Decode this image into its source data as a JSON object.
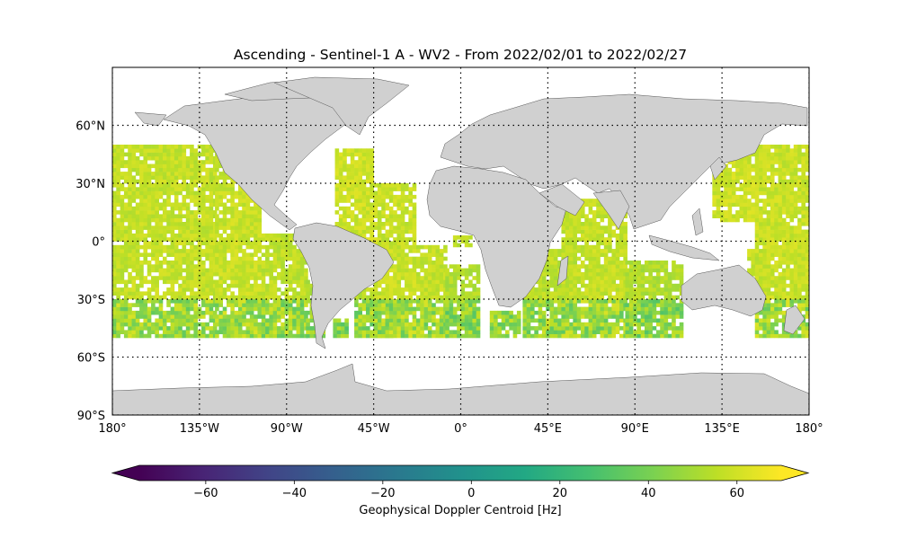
{
  "chart_data": {
    "type": "heatmap",
    "title": "Ascending - Sentinel-1 A - WV2 - From 2022/02/01 to 2022/02/27",
    "projection": "PlateCarree",
    "xlim": [
      -180,
      180
    ],
    "ylim": [
      -90,
      90
    ],
    "x_ticks": [
      -180,
      -135,
      -90,
      -45,
      0,
      45,
      90,
      135,
      180
    ],
    "x_tick_labels": [
      "180°",
      "135°W",
      "90°W",
      "45°W",
      "0°",
      "45°E",
      "90°E",
      "135°E",
      "180°"
    ],
    "y_ticks": [
      -90,
      -60,
      -30,
      0,
      30,
      60
    ],
    "y_tick_labels": [
      "90°S",
      "60°S",
      "30°S",
      "0°",
      "30°N",
      "60°N"
    ],
    "gridlines": "dotted",
    "land_color": "#d0d0d0",
    "colorbar": {
      "label": "Geophysical Doppler Centroid [Hz]",
      "colormap": "viridis",
      "range": [
        -75,
        70
      ],
      "ticks": [
        -60,
        -40,
        -20,
        0,
        20,
        40,
        60
      ],
      "tick_labels": [
        "−60",
        "−40",
        "−20",
        "0",
        "20",
        "40",
        "60"
      ],
      "extend": "both"
    },
    "data_coverage": {
      "lat_range": [
        -50,
        50
      ],
      "typical_value_range": [
        35,
        70
      ],
      "swaths": [
        {
          "lon": [
            -180,
            -127
          ],
          "lat": [
            -50,
            50
          ],
          "value": 62
        },
        {
          "lon": [
            -127,
            -103
          ],
          "lat": [
            -50,
            48
          ],
          "value": 63
        },
        {
          "lon": [
            -103,
            -80
          ],
          "lat": [
            -50,
            3
          ],
          "value": 61
        },
        {
          "lon": [
            -80,
            -70
          ],
          "lat": [
            -50,
            -20
          ],
          "value": 58
        },
        {
          "lon": [
            -66,
            -58
          ],
          "lat": [
            -50,
            -40
          ],
          "value": 56
        },
        {
          "lon": [
            -65,
            -45
          ],
          "lat": [
            -10,
            47
          ],
          "value": 64
        },
        {
          "lon": [
            -55,
            -35
          ],
          "lat": [
            -50,
            -25
          ],
          "value": 60
        },
        {
          "lon": [
            -45,
            -23
          ],
          "lat": [
            -50,
            30
          ],
          "value": 63
        },
        {
          "lon": [
            -23,
            -8
          ],
          "lat": [
            -50,
            -2
          ],
          "value": 62
        },
        {
          "lon": [
            -8,
            10
          ],
          "lat": [
            -50,
            -12
          ],
          "value": 58
        },
        {
          "lon": [
            -4,
            6
          ],
          "lat": [
            -3,
            2
          ],
          "value": 60
        },
        {
          "lon": [
            15,
            30
          ],
          "lat": [
            -50,
            -37
          ],
          "value": 60
        },
        {
          "lon": [
            32,
            60
          ],
          "lat": [
            -50,
            -5
          ],
          "value": 60
        },
        {
          "lon": [
            52,
            85
          ],
          "lat": [
            -50,
            22
          ],
          "value": 62
        },
        {
          "lon": [
            85,
            115
          ],
          "lat": [
            -50,
            -10
          ],
          "value": 58
        },
        {
          "lon": [
            130,
            152
          ],
          "lat": [
            10,
            50
          ],
          "value": 64
        },
        {
          "lon": [
            152,
            180
          ],
          "lat": [
            -50,
            50
          ],
          "value": 63
        },
        {
          "lon": [
            148,
            160
          ],
          "lat": [
            -20,
            -5
          ],
          "value": 62
        }
      ]
    }
  }
}
